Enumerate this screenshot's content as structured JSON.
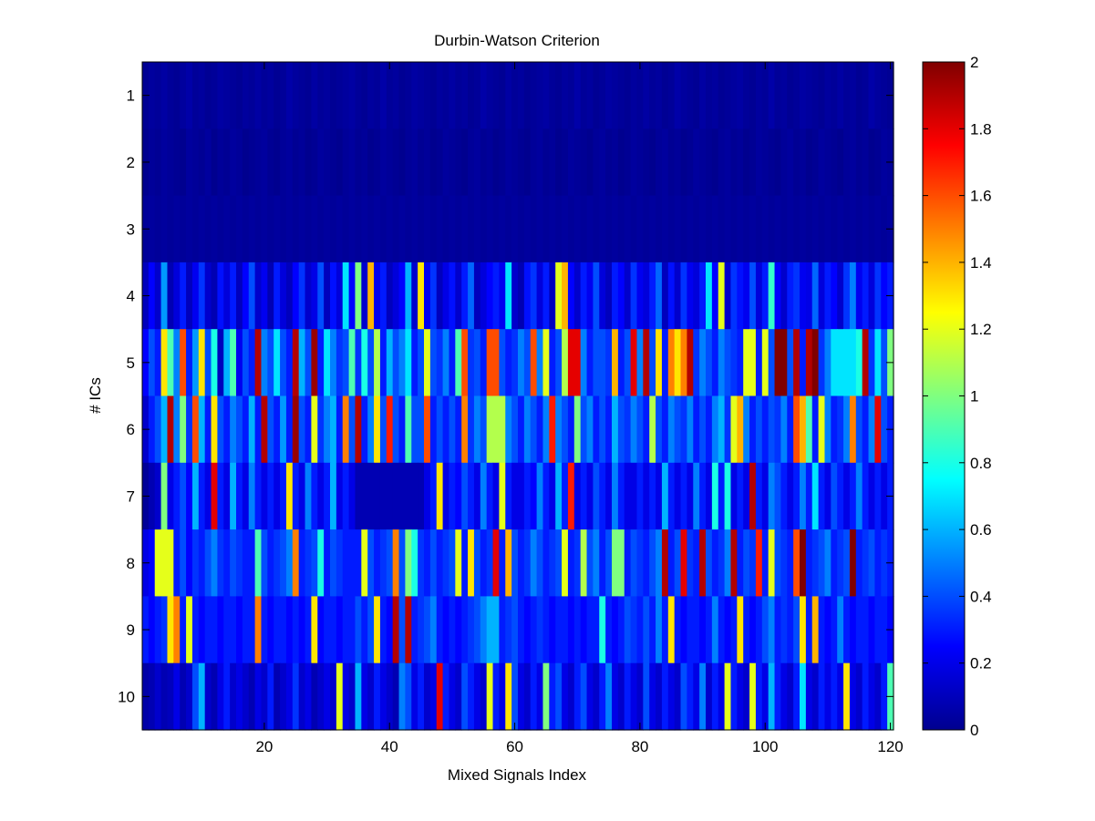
{
  "chart_data": {
    "type": "heatmap",
    "title": "Durbin-Watson Criterion",
    "xlabel": "Mixed Signals Index",
    "ylabel": "# ICs",
    "xlim": [
      0.5,
      120.5
    ],
    "x_ticks": [
      20,
      40,
      60,
      80,
      100,
      120
    ],
    "y_categories": [
      "1",
      "2",
      "3",
      "4",
      "5",
      "6",
      "7",
      "8",
      "9",
      "10"
    ],
    "x_count": 120,
    "colorbar": {
      "colormap": "jet",
      "clim": [
        0,
        2
      ],
      "ticks": [
        "0",
        "0.2",
        "0.4",
        "0.6",
        "0.8",
        "1",
        "1.2",
        "1.4",
        "1.6",
        "1.8",
        "2"
      ]
    },
    "values": [
      [
        0.04,
        0.06,
        0.05,
        0.07,
        0.05,
        0.04,
        0.06,
        0.08,
        0.05,
        0.06,
        0.04,
        0.05,
        0.07,
        0.06,
        0.05,
        0.04,
        0.06,
        0.05,
        0.07,
        0.05,
        0.06,
        0.04,
        0.05,
        0.08,
        0.06,
        0.05,
        0.04,
        0.07,
        0.05,
        0.06,
        0.04,
        0.05,
        0.06,
        0.07,
        0.05,
        0.04,
        0.06,
        0.05,
        0.08,
        0.05,
        0.06,
        0.04,
        0.05,
        0.07,
        0.06,
        0.05,
        0.04,
        0.06,
        0.05,
        0.07,
        0.05,
        0.06,
        0.04,
        0.05,
        0.08,
        0.06,
        0.05,
        0.04,
        0.07,
        0.05,
        0.06,
        0.04,
        0.05,
        0.06,
        0.07,
        0.05,
        0.04,
        0.06,
        0.05,
        0.08,
        0.05,
        0.06,
        0.04,
        0.05,
        0.07,
        0.06,
        0.05,
        0.04,
        0.06,
        0.05,
        0.07,
        0.05,
        0.06,
        0.04,
        0.05,
        0.08,
        0.06,
        0.05,
        0.04,
        0.07,
        0.05,
        0.06,
        0.04,
        0.05,
        0.06,
        0.07,
        0.05,
        0.04,
        0.06,
        0.05,
        0.08,
        0.05,
        0.06,
        0.04,
        0.05,
        0.07,
        0.06,
        0.05,
        0.04,
        0.06,
        0.05,
        0.07,
        0.05,
        0.06,
        0.04,
        0.05,
        0.08,
        0.06,
        0.05,
        0.04
      ],
      [
        0.03,
        0.05,
        0.04,
        0.06,
        0.05,
        0.04,
        0.03,
        0.06,
        0.05,
        0.04,
        0.06,
        0.03,
        0.05,
        0.04,
        0.06,
        0.05,
        0.03,
        0.04,
        0.05,
        0.06,
        0.04,
        0.03,
        0.05,
        0.06,
        0.04,
        0.05,
        0.03,
        0.04,
        0.06,
        0.05,
        0.04,
        0.03,
        0.05,
        0.06,
        0.04,
        0.05,
        0.03,
        0.04,
        0.06,
        0.05,
        0.04,
        0.03,
        0.05,
        0.06,
        0.04,
        0.05,
        0.03,
        0.04,
        0.06,
        0.05,
        0.04,
        0.03,
        0.05,
        0.06,
        0.04,
        0.05,
        0.03,
        0.04,
        0.06,
        0.05,
        0.04,
        0.03,
        0.05,
        0.06,
        0.04,
        0.05,
        0.03,
        0.04,
        0.06,
        0.05,
        0.04,
        0.03,
        0.05,
        0.06,
        0.04,
        0.05,
        0.03,
        0.04,
        0.06,
        0.05,
        0.04,
        0.03,
        0.05,
        0.06,
        0.04,
        0.05,
        0.03,
        0.04,
        0.06,
        0.05,
        0.04,
        0.03,
        0.05,
        0.06,
        0.04,
        0.05,
        0.03,
        0.04,
        0.06,
        0.05,
        0.04,
        0.03,
        0.05,
        0.06,
        0.04,
        0.05,
        0.03,
        0.04,
        0.06,
        0.05,
        0.04,
        0.03,
        0.05,
        0.06,
        0.04,
        0.05,
        0.03,
        0.04,
        0.06,
        0.05
      ],
      [
        0.05,
        0.06,
        0.05,
        0.06,
        0.05,
        0.06,
        0.05,
        0.06,
        0.05,
        0.06,
        0.05,
        0.06,
        0.05,
        0.06,
        0.05,
        0.06,
        0.05,
        0.06,
        0.05,
        0.06,
        0.05,
        0.06,
        0.05,
        0.06,
        0.05,
        0.06,
        0.05,
        0.06,
        0.05,
        0.06,
        0.05,
        0.06,
        0.05,
        0.06,
        0.05,
        0.06,
        0.05,
        0.06,
        0.05,
        0.06,
        0.05,
        0.06,
        0.05,
        0.06,
        0.05,
        0.06,
        0.05,
        0.06,
        0.05,
        0.06,
        0.05,
        0.06,
        0.05,
        0.06,
        0.05,
        0.06,
        0.05,
        0.06,
        0.05,
        0.06,
        0.05,
        0.06,
        0.05,
        0.06,
        0.05,
        0.06,
        0.05,
        0.06,
        0.05,
        0.06,
        0.05,
        0.06,
        0.05,
        0.06,
        0.05,
        0.06,
        0.05,
        0.06,
        0.05,
        0.06,
        0.05,
        0.06,
        0.05,
        0.06,
        0.05,
        0.06,
        0.05,
        0.06,
        0.05,
        0.06,
        0.05,
        0.06,
        0.05,
        0.06,
        0.05,
        0.06,
        0.05,
        0.06,
        0.05,
        0.06,
        0.05,
        0.06,
        0.05,
        0.06,
        0.05,
        0.06,
        0.05,
        0.06,
        0.05,
        0.06,
        0.05,
        0.06,
        0.05,
        0.06,
        0.05,
        0.06,
        0.05,
        0.06,
        0.05,
        0.06
      ],
      [
        0.12,
        0.25,
        0.15,
        0.55,
        0.1,
        0.18,
        0.3,
        0.12,
        0.22,
        0.35,
        0.15,
        0.1,
        0.28,
        0.18,
        0.3,
        0.12,
        0.25,
        0.4,
        0.15,
        0.22,
        0.1,
        0.3,
        0.18,
        0.12,
        0.25,
        0.35,
        0.15,
        0.2,
        0.4,
        0.12,
        0.28,
        0.18,
        0.7,
        0.25,
        1.0,
        0.15,
        1.4,
        0.22,
        0.3,
        0.12,
        0.18,
        0.25,
        0.6,
        0.15,
        1.3,
        0.22,
        0.35,
        0.12,
        0.2,
        0.28,
        0.15,
        0.3,
        0.45,
        0.12,
        0.18,
        0.25,
        0.3,
        0.22,
        0.7,
        0.15,
        0.1,
        0.28,
        0.35,
        0.18,
        0.3,
        0.12,
        1.2,
        1.4,
        0.25,
        0.15,
        0.3,
        0.22,
        0.4,
        0.18,
        0.12,
        0.3,
        0.25,
        0.15,
        0.35,
        0.22,
        0.18,
        0.3,
        0.45,
        0.12,
        0.28,
        0.15,
        0.35,
        0.22,
        0.18,
        0.3,
        0.7,
        0.25,
        1.2,
        0.15,
        0.35,
        0.28,
        0.22,
        0.4,
        0.18,
        0.3,
        0.85,
        0.25,
        0.15,
        0.3,
        0.35,
        0.22,
        0.2,
        0.45,
        0.18,
        0.3,
        0.25,
        0.15,
        0.35,
        0.5,
        0.22,
        0.3,
        0.18,
        0.35,
        0.25,
        0.3
      ],
      [
        0.25,
        0.4,
        0.3,
        1.3,
        0.9,
        0.5,
        1.6,
        0.3,
        0.55,
        1.3,
        0.4,
        0.8,
        0.12,
        0.6,
        0.9,
        0.22,
        0.4,
        0.3,
        1.9,
        0.5,
        0.4,
        0.7,
        0.4,
        0.3,
        1.9,
        0.6,
        0.4,
        1.95,
        0.3,
        0.7,
        0.5,
        0.35,
        0.4,
        0.9,
        0.35,
        0.8,
        0.4,
        1.1,
        0.3,
        0.6,
        0.4,
        0.5,
        0.7,
        0.3,
        0.4,
        1.2,
        0.4,
        0.35,
        0.5,
        0.3,
        0.9,
        1.6,
        0.35,
        0.4,
        0.3,
        1.6,
        1.6,
        0.4,
        0.3,
        0.35,
        0.5,
        0.4,
        1.6,
        0.5,
        1.2,
        0.3,
        0.4,
        1.1,
        1.8,
        1.8,
        0.5,
        0.3,
        0.4,
        0.4,
        0.35,
        1.4,
        0.3,
        0.4,
        1.8,
        0.5,
        1.9,
        0.4,
        1.3,
        0.3,
        1.5,
        1.3,
        1.5,
        1.9,
        0.35,
        0.5,
        0.4,
        0.3,
        0.5,
        0.4,
        0.35,
        0.3,
        1.2,
        1.2,
        0.3,
        1.2,
        0.4,
        2.0,
        2.0,
        0.4,
        1.9,
        0.3,
        1.9,
        2.0,
        0.35,
        0.5,
        0.7,
        0.7,
        0.7,
        0.7,
        0.8,
        1.9,
        0.35,
        0.7,
        0.4,
        1.0
      ],
      [
        0.15,
        0.3,
        0.4,
        0.6,
        1.9,
        0.5,
        1.0,
        0.35,
        1.6,
        0.6,
        0.3,
        1.3,
        0.4,
        0.3,
        0.5,
        0.4,
        0.3,
        0.6,
        0.3,
        1.9,
        0.4,
        0.3,
        0.55,
        0.3,
        1.95,
        0.4,
        0.3,
        1.2,
        0.35,
        0.5,
        0.6,
        0.3,
        1.5,
        0.4,
        1.9,
        0.3,
        0.5,
        1.3,
        0.4,
        1.7,
        0.4,
        0.3,
        0.9,
        0.4,
        0.4,
        1.6,
        0.3,
        0.4,
        0.3,
        0.4,
        0.3,
        1.5,
        0.35,
        0.5,
        0.4,
        1.1,
        1.1,
        1.1,
        0.5,
        0.4,
        0.3,
        0.5,
        0.4,
        0.3,
        0.5,
        1.7,
        0.5,
        0.4,
        0.3,
        1.0,
        0.4,
        0.5,
        0.3,
        0.4,
        0.3,
        0.6,
        0.4,
        0.35,
        0.5,
        0.4,
        0.3,
        1.1,
        0.4,
        0.3,
        0.5,
        0.4,
        0.35,
        0.5,
        0.3,
        0.4,
        0.3,
        0.5,
        0.6,
        0.35,
        1.2,
        1.4,
        0.5,
        0.3,
        0.4,
        0.3,
        0.4,
        0.35,
        0.5,
        0.3,
        1.6,
        1.4,
        0.9,
        0.3,
        1.2,
        0.5,
        0.3,
        0.35,
        0.5,
        1.5,
        0.4,
        0.3,
        0.5,
        1.8,
        0.4,
        0.3
      ],
      [
        0.05,
        0.1,
        0.15,
        1.0,
        0.2,
        0.3,
        0.4,
        0.25,
        0.6,
        0.3,
        0.2,
        1.8,
        0.3,
        0.2,
        0.6,
        0.3,
        0.2,
        0.5,
        0.3,
        0.2,
        0.3,
        0.2,
        0.3,
        1.3,
        0.3,
        0.2,
        0.5,
        0.3,
        0.2,
        0.3,
        0.6,
        0.2,
        0.3,
        0.2,
        0.1,
        0.1,
        0.1,
        0.1,
        0.1,
        0.1,
        0.1,
        0.1,
        0.1,
        0.1,
        0.1,
        0.2,
        0.3,
        1.3,
        0.2,
        0.3,
        0.25,
        0.4,
        0.3,
        0.2,
        0.5,
        0.3,
        0.2,
        1.2,
        0.3,
        0.2,
        0.2,
        0.3,
        0.25,
        0.5,
        0.3,
        0.2,
        0.6,
        0.3,
        1.7,
        0.2,
        0.3,
        0.2,
        0.4,
        0.3,
        0.2,
        0.5,
        0.3,
        0.2,
        0.2,
        0.3,
        0.2,
        0.3,
        0.2,
        0.6,
        0.3,
        0.2,
        0.3,
        0.2,
        0.5,
        0.3,
        0.2,
        0.8,
        0.3,
        0.8,
        0.2,
        0.3,
        0.2,
        1.9,
        0.3,
        0.2,
        0.5,
        0.4,
        0.3,
        0.2,
        0.3,
        0.5,
        0.3,
        0.7,
        0.3,
        0.2,
        0.4,
        0.3,
        0.2,
        0.3,
        0.5,
        0.3,
        0.2,
        0.3,
        0.2,
        0.3
      ],
      [
        0.2,
        0.25,
        1.2,
        1.2,
        1.2,
        0.3,
        0.4,
        0.25,
        0.35,
        0.3,
        0.4,
        0.5,
        0.35,
        0.3,
        0.4,
        0.35,
        0.3,
        0.3,
        0.9,
        0.4,
        0.3,
        0.35,
        0.4,
        0.5,
        1.5,
        0.3,
        0.35,
        0.4,
        0.8,
        0.3,
        0.4,
        0.35,
        0.3,
        0.3,
        0.3,
        1.2,
        0.4,
        0.3,
        0.35,
        0.4,
        1.5,
        0.4,
        1.0,
        0.8,
        0.35,
        0.3,
        0.4,
        0.3,
        0.35,
        0.4,
        1.2,
        0.3,
        1.3,
        0.4,
        0.3,
        0.35,
        1.8,
        0.3,
        1.4,
        0.4,
        0.3,
        0.35,
        0.5,
        0.4,
        0.3,
        0.35,
        0.4,
        1.2,
        0.3,
        0.35,
        1.1,
        0.4,
        0.5,
        0.3,
        0.4,
        1.0,
        1.0,
        0.3,
        0.4,
        0.35,
        0.3,
        0.4,
        0.5,
        1.9,
        0.3,
        0.4,
        1.8,
        0.35,
        0.3,
        1.9,
        0.4,
        0.3,
        0.35,
        0.5,
        1.9,
        0.3,
        0.4,
        0.35,
        1.7,
        0.3,
        1.2,
        0.4,
        0.35,
        0.3,
        1.6,
        2.0,
        0.3,
        0.35,
        0.4,
        0.5,
        0.3,
        0.35,
        0.4,
        2.0,
        0.3,
        0.35,
        0.4,
        0.3,
        0.35,
        0.3
      ],
      [
        0.3,
        0.25,
        0.3,
        0.35,
        1.3,
        1.5,
        0.3,
        1.2,
        0.3,
        0.25,
        0.3,
        0.3,
        0.25,
        0.3,
        0.3,
        0.25,
        0.3,
        0.3,
        1.5,
        0.3,
        0.25,
        0.3,
        0.3,
        0.25,
        0.3,
        0.25,
        0.3,
        1.3,
        0.25,
        0.3,
        0.3,
        0.25,
        0.3,
        0.3,
        0.4,
        0.3,
        0.4,
        1.3,
        0.3,
        0.25,
        1.9,
        0.4,
        1.9,
        0.3,
        0.35,
        0.4,
        0.5,
        0.3,
        0.25,
        0.3,
        0.25,
        0.3,
        0.35,
        0.4,
        0.5,
        0.6,
        0.6,
        0.3,
        0.35,
        0.4,
        0.3,
        0.25,
        0.3,
        0.35,
        0.3,
        0.25,
        0.3,
        0.3,
        0.25,
        0.3,
        0.25,
        0.3,
        0.3,
        0.8,
        0.3,
        0.25,
        0.3,
        0.4,
        0.35,
        0.3,
        0.4,
        0.3,
        0.5,
        0.3,
        1.3,
        0.3,
        0.25,
        0.3,
        0.3,
        0.25,
        0.3,
        0.5,
        0.3,
        0.25,
        0.3,
        1.3,
        0.3,
        0.25,
        0.3,
        0.4,
        0.5,
        0.3,
        0.35,
        0.3,
        0.4,
        1.3,
        0.3,
        1.4,
        0.3,
        0.25,
        0.3,
        0.5,
        0.3,
        0.25,
        0.3,
        0.3,
        0.25,
        0.3,
        0.3,
        0.25
      ],
      [
        0.08,
        0.1,
        0.15,
        0.1,
        0.12,
        0.2,
        0.1,
        0.15,
        0.4,
        0.6,
        0.15,
        0.1,
        0.2,
        0.3,
        0.15,
        0.2,
        0.15,
        0.1,
        0.2,
        0.15,
        0.3,
        0.1,
        0.15,
        0.2,
        0.35,
        0.15,
        0.2,
        0.1,
        0.15,
        0.2,
        0.15,
        1.2,
        0.2,
        0.15,
        0.6,
        0.2,
        0.15,
        0.3,
        0.2,
        0.15,
        0.1,
        0.5,
        0.4,
        0.2,
        0.3,
        0.15,
        0.2,
        1.8,
        0.3,
        0.2,
        0.15,
        0.4,
        0.3,
        0.2,
        0.15,
        1.2,
        0.3,
        0.2,
        1.3,
        0.4,
        0.2,
        0.15,
        0.3,
        0.2,
        1.0,
        0.3,
        0.4,
        0.2,
        0.15,
        0.3,
        0.4,
        0.2,
        0.15,
        0.3,
        0.5,
        0.2,
        0.15,
        0.3,
        0.2,
        0.15,
        0.4,
        0.2,
        0.15,
        0.3,
        0.2,
        0.15,
        0.4,
        0.3,
        0.2,
        0.5,
        0.15,
        0.3,
        0.2,
        1.2,
        0.3,
        0.2,
        0.15,
        1.2,
        0.3,
        0.2,
        0.6,
        0.3,
        0.2,
        0.15,
        0.3,
        0.7,
        0.2,
        0.15,
        0.3,
        0.2,
        0.3,
        0.2,
        1.3,
        0.2,
        0.15,
        0.3,
        0.2,
        0.15,
        0.3,
        0.9
      ]
    ]
  }
}
